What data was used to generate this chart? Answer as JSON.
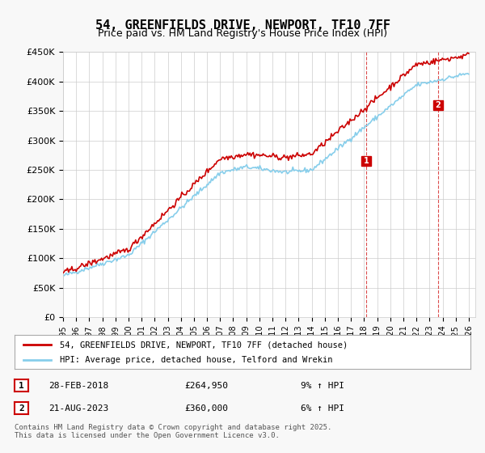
{
  "title": "54, GREENFIELDS DRIVE, NEWPORT, TF10 7FF",
  "subtitle": "Price paid vs. HM Land Registry's House Price Index (HPI)",
  "ylabel_ticks": [
    "£0",
    "£50K",
    "£100K",
    "£150K",
    "£200K",
    "£250K",
    "£300K",
    "£350K",
    "£400K",
    "£450K"
  ],
  "ytick_values": [
    0,
    50000,
    100000,
    150000,
    200000,
    250000,
    300000,
    350000,
    400000,
    450000
  ],
  "ylim": [
    0,
    450000
  ],
  "xlim_start": 1995.0,
  "xlim_end": 2026.5,
  "hpi_color": "#87CEEB",
  "price_color": "#CC0000",
  "marker1_x": 2018.16,
  "marker1_y": 264950,
  "marker2_x": 2023.64,
  "marker2_y": 360000,
  "vline1_x": 2018.16,
  "vline2_x": 2023.64,
  "legend_line1": "54, GREENFIELDS DRIVE, NEWPORT, TF10 7FF (detached house)",
  "legend_line2": "HPI: Average price, detached house, Telford and Wrekin",
  "table_row1": [
    "1",
    "28-FEB-2018",
    "£264,950",
    "9% ↑ HPI"
  ],
  "table_row2": [
    "2",
    "21-AUG-2023",
    "£360,000",
    "6% ↑ HPI"
  ],
  "footer": "Contains HM Land Registry data © Crown copyright and database right 2025.\nThis data is licensed under the Open Government Licence v3.0.",
  "plot_bg": "#ffffff"
}
